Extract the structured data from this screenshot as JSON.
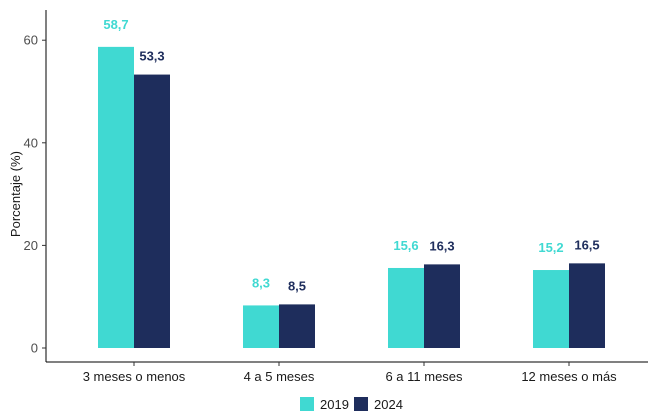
{
  "chart_data": {
    "type": "bar",
    "title": "",
    "xlabel": "",
    "ylabel": "Porcentaje (%)",
    "ylim": [
      0,
      65
    ],
    "yticks": [
      0,
      20,
      40,
      60
    ],
    "ytick_labels": [
      "0",
      "20",
      "40",
      "60"
    ],
    "categories": [
      "3 meses o menos",
      "4 a 5 meses",
      "6 a 11 meses",
      "12 meses o más"
    ],
    "series": [
      {
        "name": "2019",
        "color": "#40d9d2",
        "values": [
          58.7,
          8.3,
          15.6,
          15.2
        ],
        "labels": [
          "58,7",
          "8,3",
          "15,6",
          "15,2"
        ]
      },
      {
        "name": "2024",
        "color": "#1e2d5c",
        "values": [
          53.3,
          8.5,
          16.3,
          16.5
        ],
        "labels": [
          "53,3",
          "8,5",
          "16,3",
          "16,5"
        ]
      }
    ],
    "grid": false,
    "legend_position": "bottom"
  }
}
